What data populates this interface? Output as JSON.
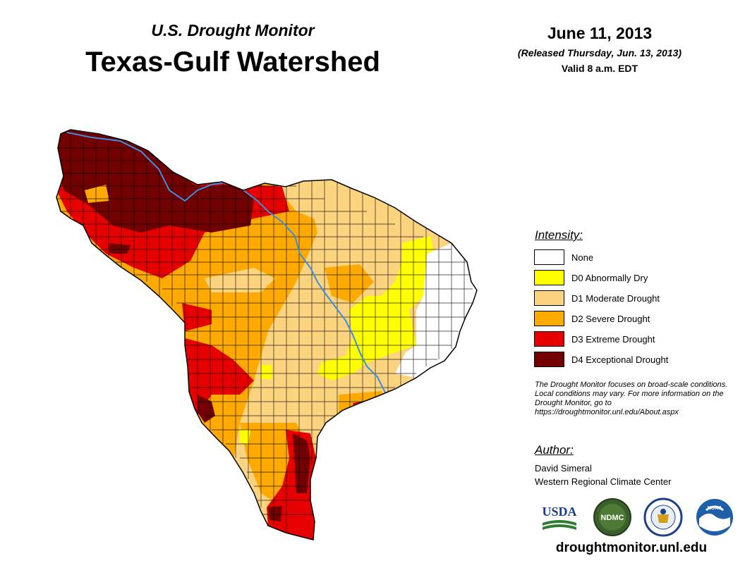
{
  "header": {
    "subtitle": "U.S. Drought Monitor",
    "title": "Texas-Gulf Watershed",
    "date": "June 11, 2013",
    "released": "(Released Thursday, Jun. 13, 2013)",
    "valid": "Valid 8 a.m. EDT"
  },
  "legend": {
    "title": "Intensity:",
    "items": [
      {
        "label": "None",
        "color": "#ffffff"
      },
      {
        "label": "D0 Abnormally Dry",
        "color": "#ffff00"
      },
      {
        "label": "D1 Moderate Drought",
        "color": "#fcd37f"
      },
      {
        "label": "D2 Severe Drought",
        "color": "#ffaa00"
      },
      {
        "label": "D3 Extreme Drought",
        "color": "#e60000"
      },
      {
        "label": "D4 Exceptional Drought",
        "color": "#730000"
      }
    ]
  },
  "note": "The Drought Monitor focuses on broad-scale conditions. Local conditions may vary. For more information on the Drought Monitor, go to https://droughtmonitor.unl.edu/About.aspx",
  "author": {
    "heading": "Author:",
    "name": "David Simeral",
    "org": "Western Regional Climate Center"
  },
  "logos": {
    "usda": "USDA",
    "ndmc": "NDMC",
    "noaa": "NOAA"
  },
  "url": "droughtmonitor.unl.edu",
  "map": {
    "region": "Texas-Gulf Watershed",
    "river_color": "#3a8fe0"
  }
}
